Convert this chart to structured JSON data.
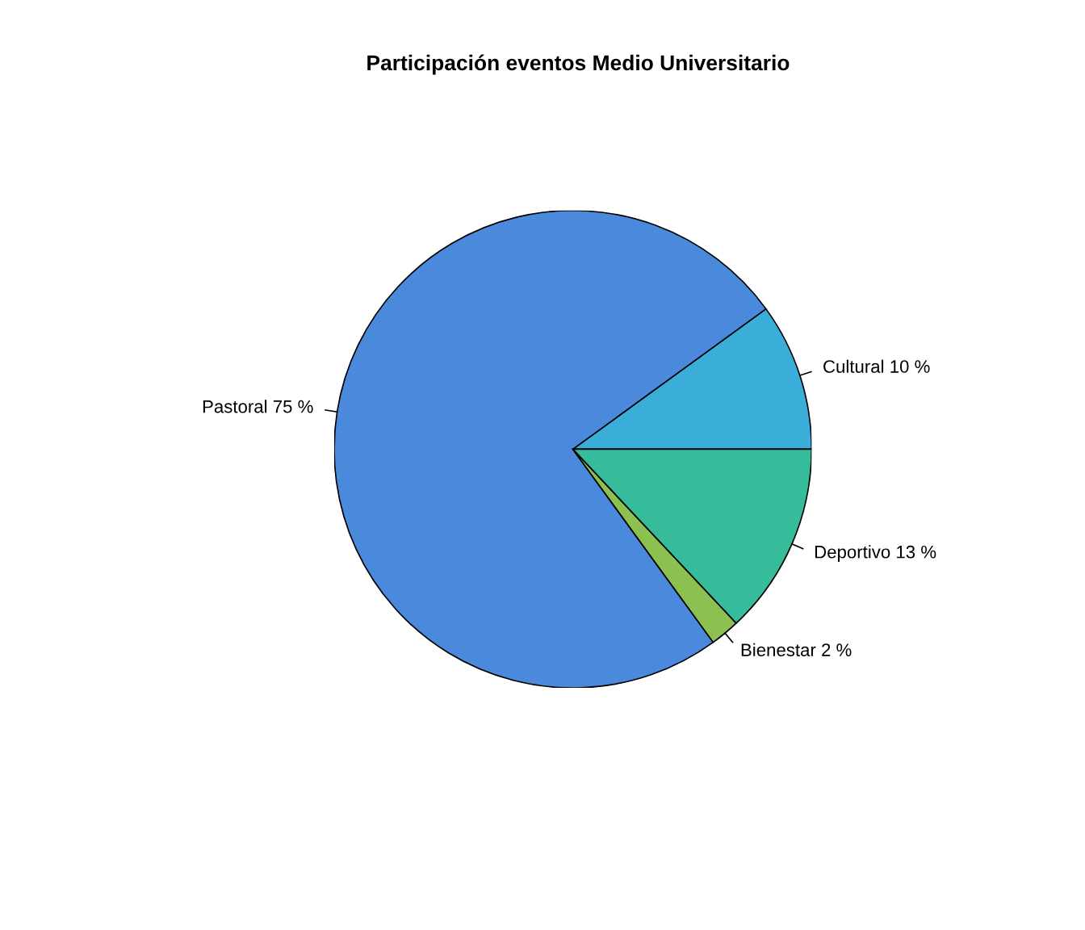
{
  "chart_data": {
    "type": "pie",
    "title": "Participación eventos Medio Universitario",
    "categories": [
      "Cultural",
      "Pastoral",
      "Bienestar",
      "Deportivo"
    ],
    "values": [
      10,
      75,
      2,
      13
    ],
    "value_labels": [
      "10 %",
      "75 %",
      "2 %",
      "13 %"
    ],
    "colors": [
      "#3badd9",
      "#4a89dc",
      "#8cc152",
      "#37bc9b"
    ]
  }
}
